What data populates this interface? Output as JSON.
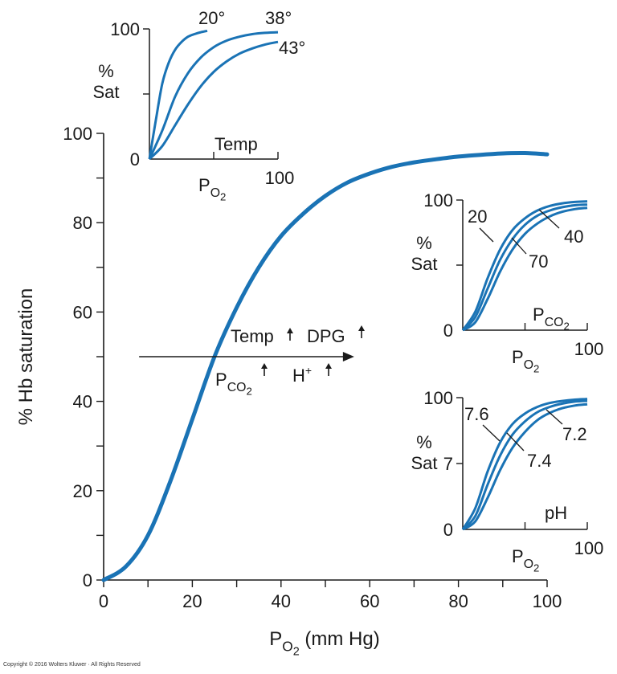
{
  "chart_data": [
    {
      "type": "line",
      "role": "main",
      "xlabel_main": "P",
      "xlabel_sub": "O",
      "xlabel_subsub": "2",
      "xlabel_unit": "(mm Hg)",
      "ylabel": "% Hb saturation",
      "xlim": [
        0,
        100
      ],
      "ylim": [
        0,
        100
      ],
      "x_ticks": [
        0,
        20,
        40,
        60,
        80,
        100
      ],
      "y_ticks": [
        0,
        20,
        40,
        60,
        80,
        100
      ],
      "x_minor_step": 10,
      "y_minor_step": 10,
      "series": [
        {
          "color": "#1a73b5",
          "x": [
            0,
            5,
            10,
            15,
            20,
            25,
            30,
            35,
            40,
            45,
            50,
            55,
            60,
            65,
            70,
            75,
            80,
            85,
            90,
            95,
            100
          ],
          "y": [
            0,
            3,
            10,
            22,
            36,
            50,
            61,
            70,
            77,
            82,
            86,
            89,
            91,
            92.5,
            93.5,
            94.2,
            94.8,
            95.2,
            95.5,
            95.6,
            95.3
          ]
        }
      ],
      "annotations": {
        "arrow_label_temp": "Temp",
        "arrow_label_dpg": "DPG",
        "arrow_label_pco2_main": "P",
        "arrow_label_pco2_sub": "CO",
        "arrow_label_pco2_subsub": "2",
        "arrow_label_h": "H",
        "arrow_label_h_sup": "+"
      }
    },
    {
      "type": "line",
      "role": "inset-temp",
      "ylabel_line1": "%",
      "ylabel_line2": "Sat",
      "xlabel_main": "P",
      "xlabel_sub": "O",
      "xlabel_subsub": "2",
      "variable_label": "Temp",
      "y_tick_top": "100",
      "y_tick_zero": "0",
      "x_tick_end": "100",
      "series": [
        {
          "name": "20°",
          "x": [
            0,
            5,
            10,
            15,
            20,
            25,
            30,
            35,
            40,
            45
          ],
          "y": [
            0,
            30,
            58,
            74,
            84,
            90,
            94,
            96,
            97.5,
            98.5
          ]
        },
        {
          "name": "38°",
          "x": [
            0,
            10,
            20,
            30,
            40,
            50,
            60,
            70,
            80,
            90,
            100
          ],
          "y": [
            0,
            22,
            48,
            66,
            78,
            86,
            91,
            94,
            96,
            97,
            97.5
          ]
        },
        {
          "name": "43°",
          "x": [
            0,
            10,
            20,
            30,
            40,
            50,
            60,
            70,
            80,
            90,
            100
          ],
          "y": [
            0,
            10,
            26,
            42,
            56,
            67,
            75,
            81,
            85,
            88,
            90
          ]
        }
      ]
    },
    {
      "type": "line",
      "role": "inset-pco2",
      "ylabel_line1": "%",
      "ylabel_line2": "Sat",
      "xlabel_main": "P",
      "xlabel_sub": "O",
      "xlabel_subsub": "2",
      "variable_label_main": "P",
      "variable_label_sub": "CO",
      "variable_label_subsub": "2",
      "y_tick_top": "100",
      "y_tick_zero": "0",
      "x_tick_end": "100",
      "series": [
        {
          "name": "20",
          "x": [
            0,
            10,
            20,
            30,
            40,
            50,
            60,
            70,
            80,
            90,
            100
          ],
          "y": [
            0,
            14,
            40,
            62,
            77,
            86,
            92,
            95.5,
            97.5,
            98.5,
            99
          ]
        },
        {
          "name": "40",
          "x": [
            0,
            10,
            20,
            30,
            40,
            50,
            60,
            70,
            80,
            90,
            100
          ],
          "y": [
            0,
            10,
            32,
            54,
            70,
            81,
            88,
            92,
            94.5,
            96,
            96.5
          ]
        },
        {
          "name": "70",
          "x": [
            0,
            10,
            20,
            30,
            40,
            50,
            60,
            70,
            80,
            90,
            100
          ],
          "y": [
            0,
            6,
            24,
            45,
            62,
            74,
            82,
            87.5,
            91,
            93,
            94
          ]
        }
      ]
    },
    {
      "type": "line",
      "role": "inset-ph",
      "ylabel_line1": "%",
      "ylabel_line2": "Sat",
      "xlabel_main": "P",
      "xlabel_sub": "O",
      "xlabel_subsub": "2",
      "variable_label": "pH",
      "y_tick_top": "100",
      "y_tick_middle": "7",
      "y_tick_zero": "0",
      "x_tick_end": "100",
      "series": [
        {
          "name": "7.6",
          "x": [
            0,
            10,
            20,
            30,
            40,
            50,
            60,
            70,
            80,
            90,
            100
          ],
          "y": [
            0,
            16,
            44,
            66,
            80,
            88,
            93,
            96,
            97.5,
            98.5,
            99
          ]
        },
        {
          "name": "7.4",
          "x": [
            0,
            10,
            20,
            30,
            40,
            50,
            60,
            70,
            80,
            90,
            100
          ],
          "y": [
            0,
            10,
            34,
            56,
            72,
            82,
            89,
            93,
            95.5,
            97,
            97.5
          ]
        },
        {
          "name": "7.2",
          "x": [
            0,
            10,
            20,
            30,
            40,
            50,
            60,
            70,
            80,
            90,
            100
          ],
          "y": [
            0,
            6,
            24,
            45,
            62,
            74,
            83,
            88.5,
            92,
            94,
            95
          ]
        }
      ]
    }
  ],
  "footer": {
    "copyright": "Copyright © 2016 Wolters Kluwer · All Rights Reserved"
  },
  "colors": {
    "curve": "#1a73b5",
    "axis": "#1a1a1a"
  }
}
